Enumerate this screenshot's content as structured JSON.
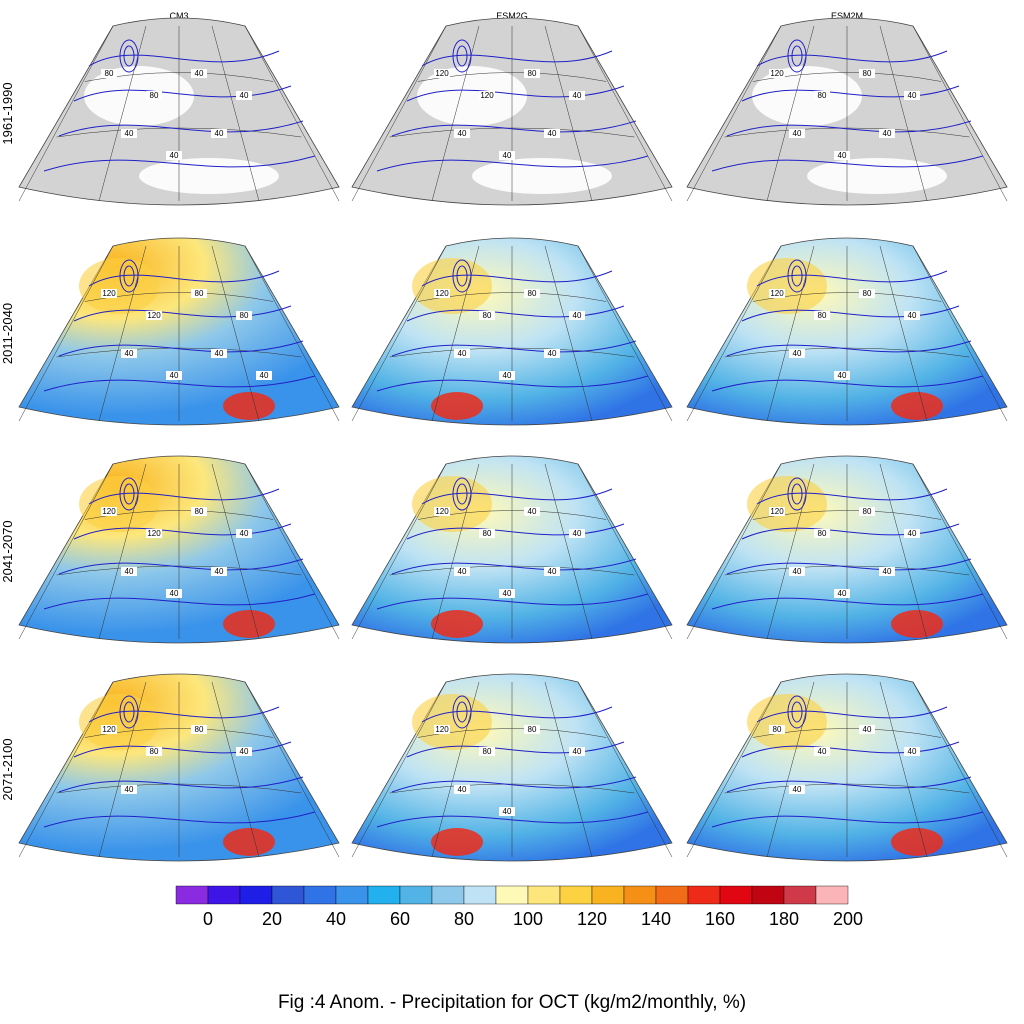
{
  "columns": [
    "CM3",
    "ESM2G",
    "ESM2M"
  ],
  "rows": [
    "1961-1990",
    "2011-2040",
    "2041-2070",
    "2071-2100"
  ],
  "contour_labels": {
    "CM3": {
      "1961-1990": [
        "80",
        "80",
        "40",
        "40",
        "40",
        "40",
        "40"
      ],
      "2011-2040": [
        "120",
        "120",
        "80",
        "80",
        "40",
        "40",
        "40",
        "40"
      ],
      "2041-2070": [
        "120",
        "120",
        "80",
        "40",
        "40",
        "40",
        "40"
      ],
      "2071-2100": [
        "120",
        "80",
        "80",
        "40",
        "40"
      ]
    },
    "ESM2G": {
      "1961-1990": [
        "120",
        "120",
        "80",
        "40",
        "40",
        "40",
        "40"
      ],
      "2011-2040": [
        "120",
        "80",
        "80",
        "40",
        "40",
        "40",
        "40"
      ],
      "2041-2070": [
        "120",
        "80",
        "40",
        "40",
        "40",
        "40",
        "40"
      ],
      "2071-2100": [
        "120",
        "80",
        "80",
        "40",
        "40",
        "40"
      ]
    },
    "ESM2M": {
      "1961-1990": [
        "120",
        "80",
        "80",
        "40",
        "40",
        "40",
        "40"
      ],
      "2011-2040": [
        "120",
        "80",
        "80",
        "40",
        "40",
        "40"
      ],
      "2041-2070": [
        "120",
        "80",
        "80",
        "40",
        "40",
        "40",
        "40"
      ],
      "2071-2100": [
        "80",
        "40",
        "40",
        "40",
        "40"
      ]
    }
  },
  "colorbar": {
    "ticks": [
      "0",
      "20",
      "40",
      "60",
      "80",
      "100",
      "120",
      "140",
      "160",
      "180",
      "200"
    ],
    "colors": [
      "#8a2be2",
      "#3f14e6",
      "#1e1ee6",
      "#2f56d6",
      "#2f73e6",
      "#3a93ea",
      "#22b1ee",
      "#52b3e6",
      "#8ec8ea",
      "#bfe3f4",
      "#fff9b8",
      "#fde77c",
      "#fcd142",
      "#f9b320",
      "#f58f16",
      "#f26b16",
      "#ee2b18",
      "#e00612",
      "#c00412",
      "#d03a48",
      "#fbb4b8"
    ]
  },
  "caption": "Fig :4  Anom.  - Precipitation for OCT (kg/m2/monthly, %)"
}
